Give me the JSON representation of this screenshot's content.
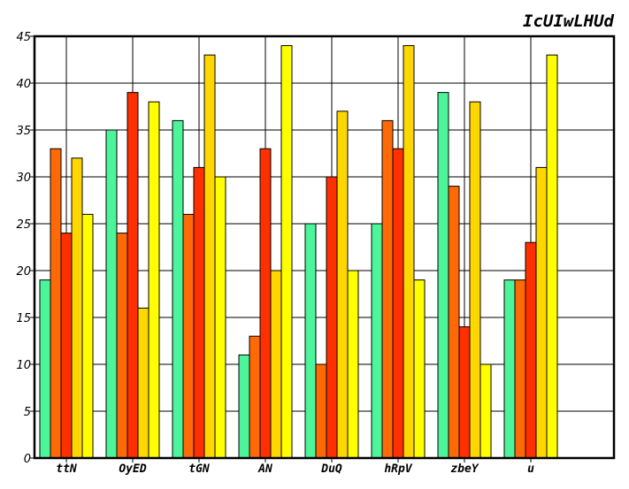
{
  "chart_data": {
    "type": "bar",
    "title": "IcUIwLHUd",
    "xlabel": "",
    "ylabel": "",
    "ylim": [
      0,
      45
    ],
    "yticks": [
      0,
      5,
      10,
      15,
      20,
      25,
      30,
      35,
      40,
      45
    ],
    "grid": true,
    "legend": "none",
    "categories": [
      "ttN",
      "OyED",
      "tGN",
      "AN",
      "DuQ",
      "hRpV",
      "zbeY",
      "u"
    ],
    "series": [
      {
        "color": "#4cf59a",
        "values": [
          19,
          35,
          36,
          11,
          25,
          25,
          39,
          19
        ]
      },
      {
        "color": "#ff6a06",
        "values": [
          33,
          24,
          26,
          13,
          10,
          36,
          29,
          19
        ]
      },
      {
        "color": "#ff3000",
        "values": [
          24,
          39,
          31,
          33,
          30,
          33,
          14,
          23
        ]
      },
      {
        "color": "#ffd700",
        "values": [
          32,
          16,
          43,
          20,
          37,
          44,
          38,
          31
        ]
      },
      {
        "color": "#ffff00",
        "values": [
          26,
          38,
          30,
          44,
          20,
          19,
          10,
          43
        ]
      }
    ]
  }
}
